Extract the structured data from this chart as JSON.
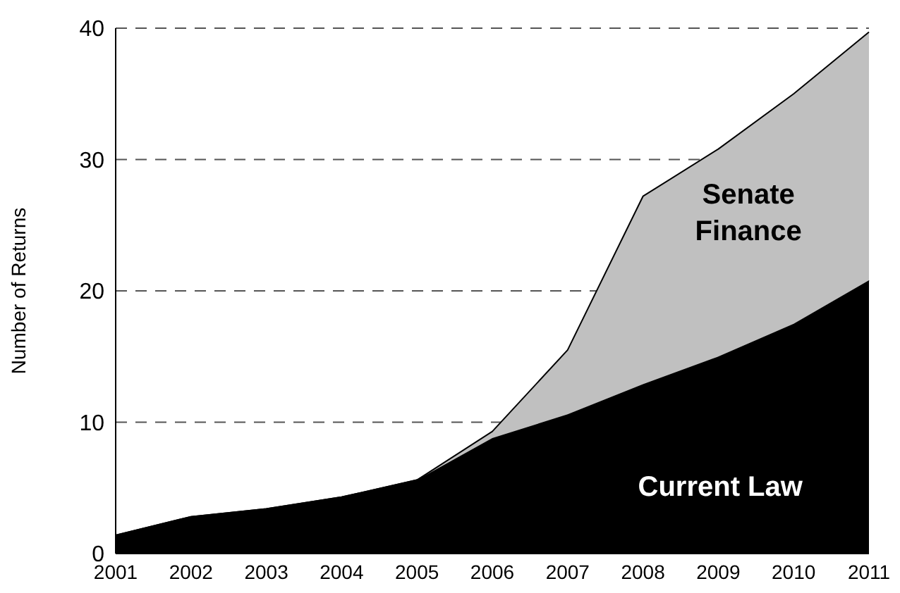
{
  "chart_data": {
    "type": "area",
    "stacked": true,
    "ylabel": "Number of Returns",
    "categories": [
      "2001",
      "2002",
      "2003",
      "2004",
      "2005",
      "2006",
      "2007",
      "2008",
      "2009",
      "2010",
      "2011"
    ],
    "series": [
      {
        "name": "Current Law",
        "color": "#000000",
        "values": [
          1.4,
          2.8,
          3.4,
          4.3,
          5.6,
          8.8,
          10.6,
          12.9,
          15.0,
          17.5,
          20.8
        ]
      },
      {
        "name": "Senate Finance",
        "color": "#c0c0c0",
        "values": [
          0,
          0,
          0,
          0,
          0,
          0.5,
          4.9,
          14.3,
          15.8,
          17.5,
          18.9
        ]
      }
    ],
    "ylim": [
      0,
      40
    ],
    "yticks": [
      0,
      10,
      20,
      30,
      40
    ],
    "grid": "y",
    "legend": false
  }
}
